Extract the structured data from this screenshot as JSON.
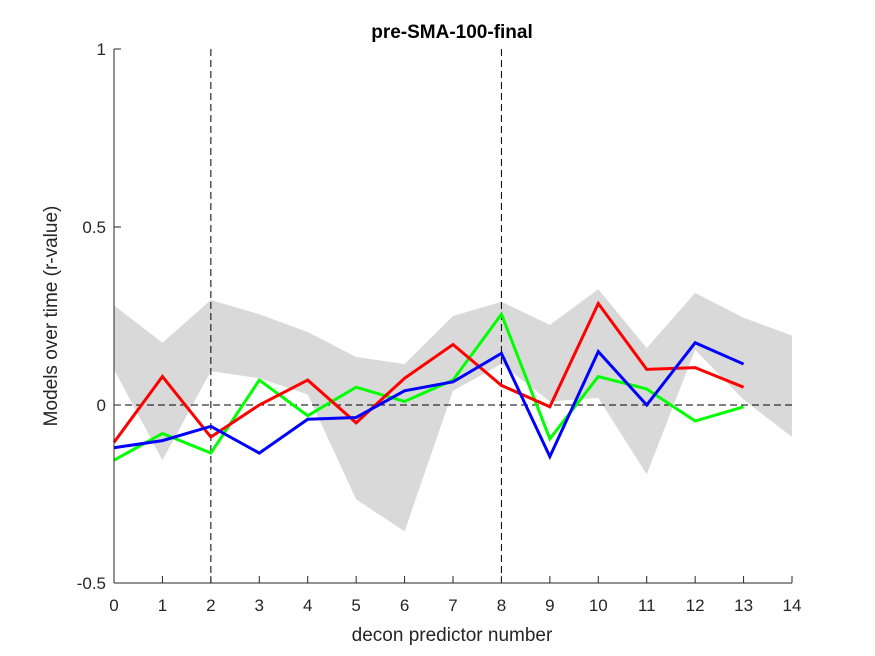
{
  "chart_data": {
    "type": "line",
    "title": "pre-SMA-100-final",
    "xlabel": "decon predictor number",
    "ylabel": "Models over time (r-value)",
    "xlim": [
      0,
      14
    ],
    "ylim": [
      -0.5,
      1
    ],
    "xticks": [
      0,
      1,
      2,
      3,
      4,
      5,
      6,
      7,
      8,
      9,
      10,
      11,
      12,
      13,
      14
    ],
    "yticks": [
      -0.5,
      0,
      0.5,
      1
    ],
    "ytick_labels": [
      "-0.5",
      "0",
      "0.5",
      "1"
    ],
    "grid": false,
    "vertical_reference_lines": [
      2,
      8
    ],
    "horizontal_reference_lines": [
      0
    ],
    "shaded_band": {
      "color": "#d9d9d9",
      "x": [
        0,
        1,
        2,
        3,
        4,
        5,
        6,
        7,
        8,
        9,
        10,
        11,
        12,
        13,
        14
      ],
      "upper": [
        0.28,
        0.175,
        0.295,
        0.255,
        0.205,
        0.135,
        0.115,
        0.25,
        0.29,
        0.225,
        0.325,
        0.16,
        0.315,
        0.245,
        0.195
      ],
      "lower": [
        0.1,
        -0.155,
        0.095,
        0.075,
        0.03,
        -0.265,
        -0.355,
        0.04,
        0.115,
        0.01,
        0.02,
        -0.195,
        0.155,
        0.015,
        -0.09
      ]
    },
    "series": [
      {
        "color": "#00ff00",
        "x": [
          0,
          1,
          2,
          3,
          4,
          5,
          6,
          7,
          8,
          9,
          10,
          11,
          12,
          13
        ],
        "values": [
          -0.155,
          -0.08,
          -0.135,
          0.07,
          -0.03,
          0.05,
          0.01,
          0.07,
          0.255,
          -0.095,
          0.08,
          0.045,
          -0.045,
          -0.005
        ]
      },
      {
        "color": "#ff0000",
        "x": [
          0,
          1,
          2,
          3,
          4,
          5,
          6,
          7,
          8,
          9,
          10,
          11,
          12,
          13
        ],
        "values": [
          -0.105,
          0.08,
          -0.09,
          0.0,
          0.07,
          -0.05,
          0.075,
          0.17,
          0.055,
          -0.005,
          0.285,
          0.1,
          0.105,
          0.05
        ]
      },
      {
        "color": "#0000ff",
        "x": [
          0,
          1,
          2,
          3,
          4,
          5,
          6,
          7,
          8,
          9,
          10,
          11,
          12,
          13
        ],
        "values": [
          -0.12,
          -0.1,
          -0.06,
          -0.135,
          -0.04,
          -0.035,
          0.04,
          0.065,
          0.145,
          -0.145,
          0.15,
          0.0,
          0.175,
          0.115
        ]
      }
    ]
  }
}
